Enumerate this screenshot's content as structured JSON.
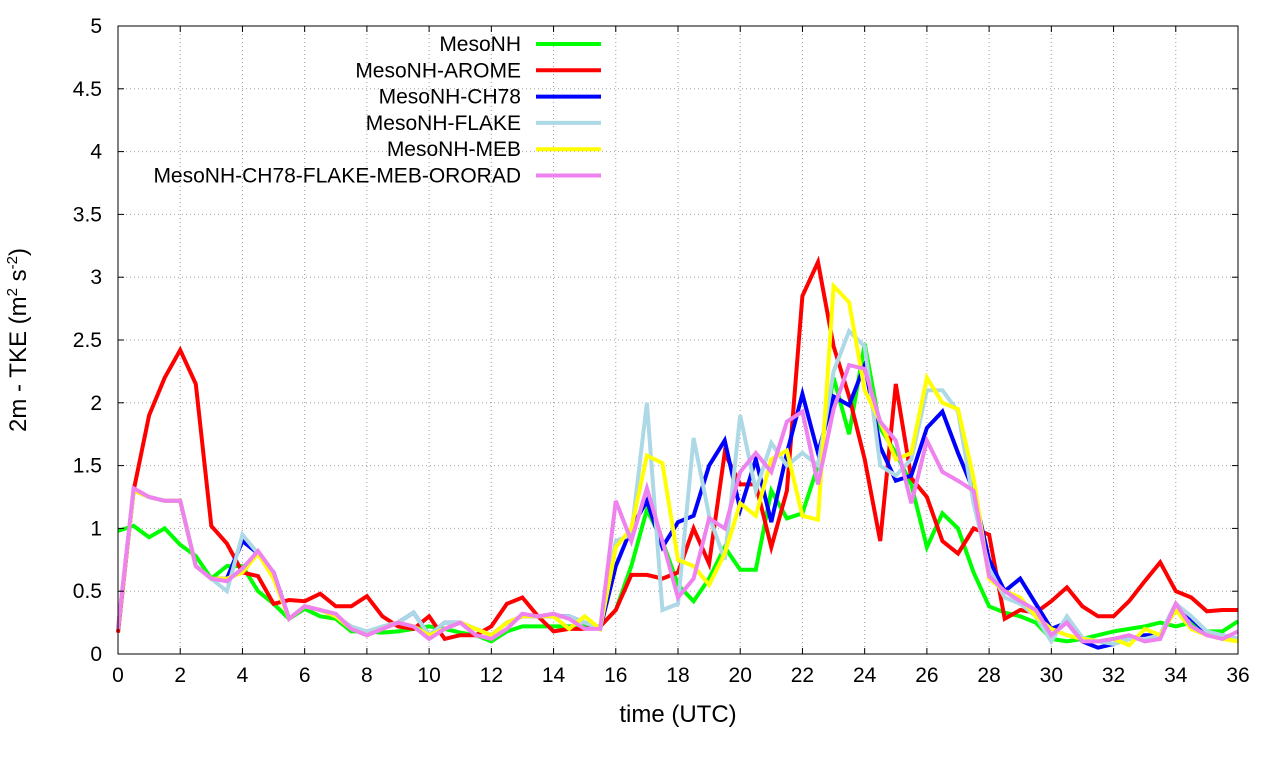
{
  "chart_data": {
    "type": "line",
    "title": "",
    "xlabel": "time (UTC)",
    "ylabel": "2m - TKE (m",
    "ylabel_parts": [
      "2m - TKE (m",
      "2",
      " s",
      "-2",
      ")"
    ],
    "xlim": [
      0,
      36
    ],
    "ylim": [
      0,
      5
    ],
    "xticks": [
      "0",
      "2",
      "4",
      "6",
      "8",
      "10",
      "12",
      "14",
      "16",
      "18",
      "20",
      "22",
      "24",
      "26",
      "28",
      "30",
      "32",
      "34",
      "36"
    ],
    "yticks": [
      "0",
      "0.5",
      "1",
      "1.5",
      "2",
      "2.5",
      "3",
      "3.5",
      "4",
      "4.5",
      "5"
    ],
    "grid": true,
    "legend_position": "top-left",
    "series": [
      {
        "name": "MesoNH",
        "color": "#00ff00",
        "x": [
          0,
          0.5,
          1,
          1.5,
          2,
          2.5,
          3,
          3.5,
          4,
          4.5,
          5,
          5.5,
          6,
          6.5,
          7,
          7.5,
          8,
          8.5,
          9,
          9.5,
          10,
          10.5,
          11,
          11.5,
          12,
          12.5,
          13,
          13.5,
          14,
          14.5,
          15,
          15.5,
          16,
          16.5,
          17,
          17.5,
          18,
          18.5,
          19,
          19.5,
          20,
          20.5,
          21,
          21.5,
          22,
          22.5,
          23,
          23.5,
          24,
          24.5,
          25,
          25.5,
          26,
          26.5,
          27,
          27.5,
          28,
          28.5,
          29,
          29.5,
          30,
          30.5,
          31,
          31.5,
          32,
          32.5,
          33,
          33.5,
          34,
          34.5,
          35,
          35.5,
          36
        ],
        "values": [
          0.98,
          1.02,
          0.93,
          1.0,
          0.87,
          0.78,
          0.6,
          0.7,
          0.7,
          0.5,
          0.4,
          0.28,
          0.36,
          0.3,
          0.28,
          0.18,
          0.18,
          0.17,
          0.18,
          0.2,
          0.22,
          0.2,
          0.17,
          0.15,
          0.1,
          0.18,
          0.22,
          0.22,
          0.22,
          0.22,
          0.22,
          0.22,
          0.35,
          0.7,
          1.15,
          0.9,
          0.55,
          0.42,
          0.6,
          0.85,
          0.67,
          0.67,
          1.3,
          1.08,
          1.12,
          1.5,
          2.2,
          1.75,
          2.47,
          1.8,
          1.6,
          1.35,
          0.85,
          1.12,
          1.0,
          0.65,
          0.38,
          0.33,
          0.3,
          0.25,
          0.12,
          0.1,
          0.12,
          0.15,
          0.18,
          0.2,
          0.22,
          0.25,
          0.22,
          0.25,
          0.18,
          0.18,
          0.26
        ]
      },
      {
        "name": "MesoNH-AROME",
        "color": "#ff0000",
        "x": [
          0,
          0.5,
          1,
          1.5,
          2,
          2.5,
          3,
          3.5,
          4,
          4.5,
          5,
          5.5,
          6,
          6.5,
          7,
          7.5,
          8,
          8.5,
          9,
          9.5,
          10,
          10.5,
          11,
          11.5,
          12,
          12.5,
          13,
          13.5,
          14,
          14.5,
          15,
          15.5,
          16,
          16.5,
          17,
          17.5,
          18,
          18.5,
          19,
          19.5,
          20,
          20.5,
          21,
          21.5,
          22,
          22.5,
          23,
          23.5,
          24,
          24.5,
          25,
          25.5,
          26,
          26.5,
          27,
          27.5,
          28,
          28.5,
          29,
          29.5,
          30,
          30.5,
          31,
          31.5,
          32,
          32.5,
          33,
          33.5,
          34,
          34.5,
          35,
          35.5,
          36
        ],
        "values": [
          0.17,
          1.3,
          1.9,
          2.2,
          2.42,
          2.15,
          1.02,
          0.88,
          0.65,
          0.62,
          0.4,
          0.43,
          0.42,
          0.48,
          0.38,
          0.38,
          0.46,
          0.3,
          0.22,
          0.2,
          0.3,
          0.12,
          0.15,
          0.15,
          0.22,
          0.4,
          0.45,
          0.3,
          0.18,
          0.2,
          0.2,
          0.22,
          0.35,
          0.63,
          0.63,
          0.6,
          0.65,
          1.0,
          0.72,
          1.6,
          1.35,
          1.35,
          0.85,
          1.3,
          2.85,
          3.12,
          2.45,
          2.05,
          1.55,
          0.9,
          2.15,
          1.4,
          1.25,
          0.9,
          0.8,
          1.0,
          0.95,
          0.28,
          0.35,
          0.33,
          0.42,
          0.53,
          0.38,
          0.3,
          0.3,
          0.42,
          0.58,
          0.73,
          0.5,
          0.45,
          0.34,
          0.35,
          0.35
        ]
      },
      {
        "name": "MesoNH-CH78",
        "color": "#0000ff",
        "x": [
          0,
          0.5,
          1,
          1.5,
          2,
          2.5,
          3,
          3.5,
          4,
          4.5,
          5,
          5.5,
          6,
          6.5,
          7,
          7.5,
          8,
          8.5,
          9,
          9.5,
          10,
          10.5,
          11,
          11.5,
          12,
          12.5,
          13,
          13.5,
          14,
          14.5,
          15,
          15.5,
          16,
          16.5,
          17,
          17.5,
          18,
          18.5,
          19,
          19.5,
          20,
          20.5,
          21,
          21.5,
          22,
          22.5,
          23,
          23.5,
          24,
          24.5,
          25,
          25.5,
          26,
          26.5,
          27,
          27.5,
          28,
          28.5,
          29,
          29.5,
          30,
          30.5,
          31,
          31.5,
          32,
          32.5,
          33,
          33.5,
          34,
          34.5,
          35,
          35.5,
          36
        ],
        "values": [
          0.2,
          1.3,
          1.25,
          1.22,
          1.22,
          0.7,
          0.6,
          0.6,
          0.9,
          0.8,
          0.65,
          0.28,
          0.38,
          0.35,
          0.3,
          0.2,
          0.15,
          0.2,
          0.25,
          0.33,
          0.15,
          0.25,
          0.25,
          0.2,
          0.15,
          0.25,
          0.3,
          0.3,
          0.3,
          0.3,
          0.25,
          0.2,
          0.7,
          1.0,
          1.22,
          0.85,
          1.05,
          1.1,
          1.5,
          1.7,
          1.15,
          1.55,
          1.05,
          1.6,
          2.07,
          1.6,
          2.05,
          1.98,
          2.3,
          1.65,
          1.38,
          1.42,
          1.8,
          1.93,
          1.6,
          1.3,
          0.75,
          0.5,
          0.6,
          0.4,
          0.2,
          0.25,
          0.1,
          0.05,
          0.08,
          0.12,
          0.15,
          0.15,
          0.4,
          0.28,
          0.17,
          0.15,
          0.12
        ]
      },
      {
        "name": "MesoNH-FLAKE",
        "color": "#add8e6",
        "x": [
          0,
          0.5,
          1,
          1.5,
          2,
          2.5,
          3,
          3.5,
          4,
          4.5,
          5,
          5.5,
          6,
          6.5,
          7,
          7.5,
          8,
          8.5,
          9,
          9.5,
          10,
          10.5,
          11,
          11.5,
          12,
          12.5,
          13,
          13.5,
          14,
          14.5,
          15,
          15.5,
          16,
          16.5,
          17,
          17.5,
          18,
          18.5,
          19,
          19.5,
          20,
          20.5,
          21,
          21.5,
          22,
          22.5,
          23,
          23.5,
          24,
          24.5,
          25,
          25.5,
          26,
          26.5,
          27,
          27.5,
          28,
          28.5,
          29,
          29.5,
          30,
          30.5,
          31,
          31.5,
          32,
          32.5,
          33,
          33.5,
          34,
          34.5,
          35,
          35.5,
          36
        ],
        "values": [
          0.2,
          1.3,
          1.25,
          1.22,
          1.22,
          0.7,
          0.6,
          0.5,
          0.95,
          0.8,
          0.62,
          0.28,
          0.38,
          0.35,
          0.3,
          0.22,
          0.18,
          0.22,
          0.25,
          0.33,
          0.15,
          0.25,
          0.25,
          0.2,
          0.15,
          0.25,
          0.3,
          0.3,
          0.3,
          0.3,
          0.25,
          0.2,
          0.9,
          0.95,
          2.0,
          0.35,
          0.4,
          1.72,
          1.1,
          0.75,
          1.9,
          1.3,
          1.68,
          1.5,
          1.6,
          1.5,
          2.25,
          2.57,
          2.45,
          1.5,
          1.42,
          1.55,
          2.1,
          2.1,
          1.93,
          1.2,
          0.68,
          0.45,
          0.4,
          0.3,
          0.1,
          0.3,
          0.13,
          0.1,
          0.08,
          0.12,
          0.12,
          0.15,
          0.4,
          0.3,
          0.18,
          0.15,
          0.12
        ]
      },
      {
        "name": "MesoNH-MEB",
        "color": "#ffff00",
        "x": [
          0,
          0.5,
          1,
          1.5,
          2,
          2.5,
          3,
          3.5,
          4,
          4.5,
          5,
          5.5,
          6,
          6.5,
          7,
          7.5,
          8,
          8.5,
          9,
          9.5,
          10,
          10.5,
          11,
          11.5,
          12,
          12.5,
          13,
          13.5,
          14,
          14.5,
          15,
          15.5,
          16,
          16.5,
          17,
          17.5,
          18,
          18.5,
          19,
          19.5,
          20,
          20.5,
          21,
          21.5,
          22,
          22.5,
          23,
          23.5,
          24,
          24.5,
          25,
          25.5,
          26,
          26.5,
          27,
          27.5,
          28,
          28.5,
          29,
          29.5,
          30,
          30.5,
          31,
          31.5,
          32,
          32.5,
          33,
          33.5,
          34,
          34.5,
          35,
          35.5,
          36
        ],
        "values": [
          0.2,
          1.3,
          1.25,
          1.22,
          1.22,
          0.7,
          0.6,
          0.6,
          0.65,
          0.8,
          0.6,
          0.28,
          0.38,
          0.35,
          0.3,
          0.2,
          0.15,
          0.2,
          0.25,
          0.22,
          0.15,
          0.2,
          0.25,
          0.2,
          0.15,
          0.25,
          0.3,
          0.3,
          0.3,
          0.2,
          0.3,
          0.2,
          0.85,
          1.0,
          1.58,
          1.52,
          0.75,
          0.7,
          0.55,
          0.8,
          1.2,
          1.1,
          1.55,
          1.62,
          1.1,
          1.07,
          2.93,
          2.8,
          2.1,
          1.85,
          1.55,
          1.6,
          2.2,
          2.0,
          1.95,
          1.4,
          0.6,
          0.5,
          0.45,
          0.3,
          0.2,
          0.15,
          0.12,
          0.1,
          0.12,
          0.07,
          0.2,
          0.15,
          0.35,
          0.2,
          0.15,
          0.12,
          0.1
        ]
      },
      {
        "name": "MesoNH-CH78-FLAKE-MEB-ORORAD",
        "color": "#ee82ee",
        "x": [
          0,
          0.5,
          1,
          1.5,
          2,
          2.5,
          3,
          3.5,
          4,
          4.5,
          5,
          5.5,
          6,
          6.5,
          7,
          7.5,
          8,
          8.5,
          9,
          9.5,
          10,
          10.5,
          11,
          11.5,
          12,
          12.5,
          13,
          13.5,
          14,
          14.5,
          15,
          15.5,
          16,
          16.5,
          17,
          17.5,
          18,
          18.5,
          19,
          19.5,
          20,
          20.5,
          21,
          21.5,
          22,
          22.5,
          23,
          23.5,
          24,
          24.5,
          25,
          25.5,
          26,
          26.5,
          27,
          27.5,
          28,
          28.5,
          29,
          29.5,
          30,
          30.5,
          31,
          31.5,
          32,
          32.5,
          33,
          33.5,
          34,
          34.5,
          35,
          35.5,
          36
        ],
        "values": [
          0.2,
          1.32,
          1.25,
          1.22,
          1.22,
          0.7,
          0.6,
          0.58,
          0.68,
          0.82,
          0.65,
          0.28,
          0.38,
          0.35,
          0.32,
          0.2,
          0.15,
          0.2,
          0.25,
          0.22,
          0.12,
          0.2,
          0.25,
          0.15,
          0.12,
          0.2,
          0.32,
          0.3,
          0.32,
          0.28,
          0.2,
          0.2,
          1.22,
          0.9,
          1.32,
          0.9,
          0.45,
          0.6,
          1.08,
          1.0,
          1.45,
          1.6,
          1.45,
          1.85,
          1.93,
          1.35,
          1.95,
          2.3,
          2.27,
          1.85,
          1.7,
          1.2,
          1.7,
          1.45,
          1.38,
          1.3,
          0.62,
          0.5,
          0.42,
          0.35,
          0.15,
          0.25,
          0.1,
          0.1,
          0.12,
          0.15,
          0.1,
          0.12,
          0.4,
          0.22,
          0.15,
          0.12,
          0.18
        ]
      }
    ]
  }
}
